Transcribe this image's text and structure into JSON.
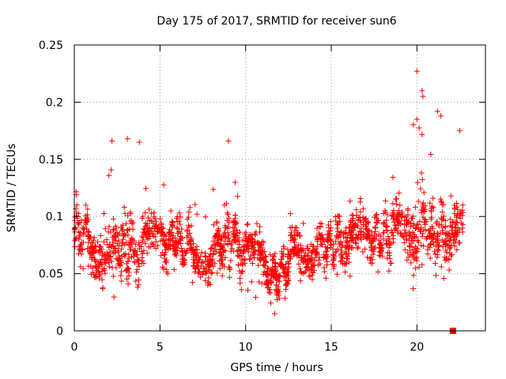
{
  "chart_data": {
    "type": "scatter",
    "title": "Day 175 of 2017, SRMTID for receiver sun6",
    "xlabel": "GPS time / hours",
    "ylabel": "SRMTID / TECUs",
    "xlim": [
      0,
      24
    ],
    "ylim": [
      0,
      0.25
    ],
    "x_ticks": [
      0,
      5,
      10,
      15,
      20
    ],
    "x_tick_labels": [
      "0",
      "5",
      "10",
      "15",
      "20"
    ],
    "y_ticks": [
      0,
      0.05,
      0.1,
      0.15,
      0.2,
      0.25
    ],
    "y_tick_labels": [
      "0",
      "0.05",
      "0.1",
      "0.15",
      "0.2",
      "0.25"
    ],
    "grid": true,
    "marker": "plus",
    "marker_color": "#ff0000",
    "series": [
      {
        "name": "SRMTID",
        "note": "dense cloud of ~2000 points; generated from the envelope below",
        "envelope": [
          {
            "x": 0.0,
            "low": 0.035,
            "high": 0.14,
            "center": 0.09
          },
          {
            "x": 1.0,
            "low": 0.03,
            "high": 0.12,
            "center": 0.075
          },
          {
            "x": 2.0,
            "low": 0.025,
            "high": 0.165,
            "center": 0.07
          },
          {
            "x": 3.0,
            "low": 0.025,
            "high": 0.168,
            "center": 0.072
          },
          {
            "x": 4.0,
            "low": 0.035,
            "high": 0.14,
            "center": 0.075
          },
          {
            "x": 5.0,
            "low": 0.025,
            "high": 0.13,
            "center": 0.078
          },
          {
            "x": 6.0,
            "low": 0.04,
            "high": 0.125,
            "center": 0.08
          },
          {
            "x": 7.0,
            "low": 0.035,
            "high": 0.12,
            "center": 0.07
          },
          {
            "x": 8.0,
            "low": 0.04,
            "high": 0.12,
            "center": 0.068
          },
          {
            "x": 9.0,
            "low": 0.04,
            "high": 0.165,
            "center": 0.08
          },
          {
            "x": 10.0,
            "low": 0.03,
            "high": 0.13,
            "center": 0.072
          },
          {
            "x": 11.0,
            "low": 0.025,
            "high": 0.1,
            "center": 0.06
          },
          {
            "x": 11.8,
            "low": 0.015,
            "high": 0.09,
            "center": 0.045
          },
          {
            "x": 13.0,
            "low": 0.035,
            "high": 0.125,
            "center": 0.07
          },
          {
            "x": 14.0,
            "low": 0.035,
            "high": 0.12,
            "center": 0.072
          },
          {
            "x": 15.0,
            "low": 0.035,
            "high": 0.12,
            "center": 0.075
          },
          {
            "x": 16.0,
            "low": 0.035,
            "high": 0.125,
            "center": 0.08
          },
          {
            "x": 17.0,
            "low": 0.04,
            "high": 0.125,
            "center": 0.08
          },
          {
            "x": 18.0,
            "low": 0.04,
            "high": 0.13,
            "center": 0.085
          },
          {
            "x": 19.0,
            "low": 0.045,
            "high": 0.14,
            "center": 0.09
          },
          {
            "x": 20.0,
            "low": 0.03,
            "high": 0.227,
            "center": 0.09
          },
          {
            "x": 21.0,
            "low": 0.04,
            "high": 0.165,
            "center": 0.085
          },
          {
            "x": 22.0,
            "low": 0.05,
            "high": 0.16,
            "center": 0.085
          },
          {
            "x": 22.7,
            "low": 0.055,
            "high": 0.16,
            "center": 0.09
          }
        ],
        "highlights": [
          {
            "x": 20.0,
            "y": 0.227
          },
          {
            "x": 20.3,
            "y": 0.21
          },
          {
            "x": 20.35,
            "y": 0.205
          },
          {
            "x": 21.2,
            "y": 0.192
          },
          {
            "x": 21.4,
            "y": 0.188
          },
          {
            "x": 20.0,
            "y": 0.185
          },
          {
            "x": 9.0,
            "y": 0.166
          },
          {
            "x": 3.1,
            "y": 0.168
          },
          {
            "x": 2.2,
            "y": 0.166
          },
          {
            "x": 3.8,
            "y": 0.165
          },
          {
            "x": 22.5,
            "y": 0.175
          },
          {
            "x": 11.7,
            "y": 0.015
          }
        ]
      }
    ],
    "extra_markers": [
      {
        "x": 22.1,
        "y": 0.0,
        "shape": "square",
        "color": "#ff0000"
      }
    ]
  }
}
